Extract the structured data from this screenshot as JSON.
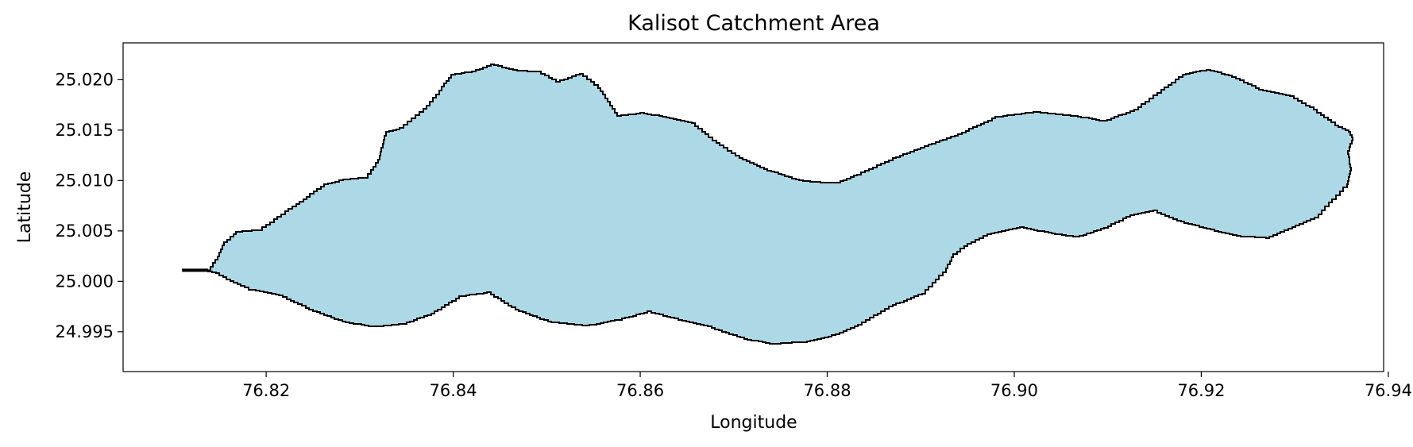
{
  "chart_data": {
    "type": "area",
    "title": "Kalisot Catchment Area",
    "xlabel": "Longitude",
    "ylabel": "Latitude",
    "xlim": [
      76.8047,
      76.9395
    ],
    "ylim": [
      24.99105,
      25.02365
    ],
    "xticks": [
      76.82,
      76.84,
      76.86,
      76.88,
      76.9,
      76.92,
      76.94
    ],
    "xtick_labels": [
      "76.82",
      "76.84",
      "76.86",
      "76.88",
      "76.90",
      "76.92",
      "76.94"
    ],
    "yticks": [
      24.995,
      25.0,
      25.005,
      25.01,
      25.015,
      25.02
    ],
    "ytick_labels": [
      "24.995",
      "25.000",
      "25.005",
      "25.010",
      "25.015",
      "25.020"
    ],
    "grid": false,
    "legend": "none",
    "fill_color": "#add8e6",
    "edge_color": "#000000",
    "outlet_stub": [
      [
        76.811,
        25.0011
      ],
      [
        76.8138,
        25.0011
      ]
    ],
    "boundary": [
      [
        76.8138,
        25.0011
      ],
      [
        76.8148,
        25.0025
      ],
      [
        76.8155,
        25.0039
      ],
      [
        76.8168,
        25.0049
      ],
      [
        76.8178,
        25.005
      ],
      [
        76.8192,
        25.0051
      ],
      [
        76.8212,
        25.0064
      ],
      [
        76.8232,
        25.0077
      ],
      [
        76.8262,
        25.0096
      ],
      [
        76.8282,
        25.0101
      ],
      [
        76.8306,
        25.0103
      ],
      [
        76.832,
        25.0121
      ],
      [
        76.8328,
        25.0148
      ],
      [
        76.8343,
        25.0152
      ],
      [
        76.8368,
        25.0171
      ],
      [
        76.8388,
        25.0193
      ],
      [
        76.8398,
        25.0205
      ],
      [
        76.842,
        25.0208
      ],
      [
        76.844,
        25.0215
      ],
      [
        76.8468,
        25.0209
      ],
      [
        76.849,
        25.0208
      ],
      [
        76.851,
        25.0198
      ],
      [
        76.8535,
        25.0206
      ],
      [
        76.8555,
        25.0192
      ],
      [
        76.8575,
        25.0164
      ],
      [
        76.86,
        25.0167
      ],
      [
        76.862,
        25.0164
      ],
      [
        76.8655,
        25.0157
      ],
      [
        76.8677,
        25.014
      ],
      [
        76.8706,
        25.0122
      ],
      [
        76.8736,
        25.011
      ],
      [
        76.877,
        25.01
      ],
      [
        76.8793,
        25.0098
      ],
      [
        76.881,
        25.0098
      ],
      [
        76.8832,
        25.0106
      ],
      [
        76.887,
        25.0122
      ],
      [
        76.8904,
        25.0134
      ],
      [
        76.894,
        25.0146
      ],
      [
        76.898,
        25.0163
      ],
      [
        76.902,
        25.0168
      ],
      [
        76.9064,
        25.0164
      ],
      [
        76.9095,
        25.0159
      ],
      [
        76.9128,
        25.017
      ],
      [
        76.9157,
        25.019
      ],
      [
        76.918,
        25.0205
      ],
      [
        76.9206,
        25.021
      ],
      [
        76.9233,
        25.0203
      ],
      [
        76.9262,
        25.019
      ],
      [
        76.9295,
        25.0184
      ],
      [
        76.932,
        25.017
      ],
      [
        76.9343,
        25.0155
      ],
      [
        76.9358,
        25.0148
      ],
      [
        76.9362,
        25.014
      ],
      [
        76.9357,
        25.0126
      ],
      [
        76.936,
        25.011
      ],
      [
        76.9356,
        25.0093
      ],
      [
        76.934,
        25.0078
      ],
      [
        76.9325,
        25.0063
      ],
      [
        76.9301,
        25.0054
      ],
      [
        76.9273,
        25.0043
      ],
      [
        76.9242,
        25.0045
      ],
      [
        76.921,
        25.0052
      ],
      [
        76.9178,
        25.006
      ],
      [
        76.9153,
        25.007
      ],
      [
        76.9128,
        25.0066
      ],
      [
        76.91,
        25.0053
      ],
      [
        76.907,
        25.0044
      ],
      [
        76.904,
        25.0048
      ],
      [
        76.901,
        25.0054
      ],
      [
        76.8975,
        25.0047
      ],
      [
        76.895,
        25.0035
      ],
      [
        76.8935,
        25.0024
      ],
      [
        76.8927,
        25.0009
      ],
      [
        76.8905,
        24.9988
      ],
      [
        76.887,
        24.9975
      ],
      [
        76.8833,
        24.9955
      ],
      [
        76.8805,
        24.9945
      ],
      [
        76.8778,
        24.994
      ],
      [
        76.8742,
        24.9938
      ],
      [
        76.8715,
        24.9943
      ],
      [
        76.8676,
        24.9955
      ],
      [
        76.8645,
        24.9962
      ],
      [
        76.8612,
        24.997
      ],
      [
        76.858,
        24.9962
      ],
      [
        76.8546,
        24.9956
      ],
      [
        76.8505,
        24.996
      ],
      [
        76.847,
        24.9972
      ],
      [
        76.844,
        24.9989
      ],
      [
        76.841,
        24.9985
      ],
      [
        76.838,
        24.9968
      ],
      [
        76.835,
        24.9958
      ],
      [
        76.8318,
        24.9955
      ],
      [
        76.8285,
        24.996
      ],
      [
        76.825,
        24.9972
      ],
      [
        76.8218,
        24.9986
      ],
      [
        76.8185,
        24.9992
      ],
      [
        76.8165,
        25.0
      ],
      [
        76.815,
        25.0008
      ]
    ]
  }
}
